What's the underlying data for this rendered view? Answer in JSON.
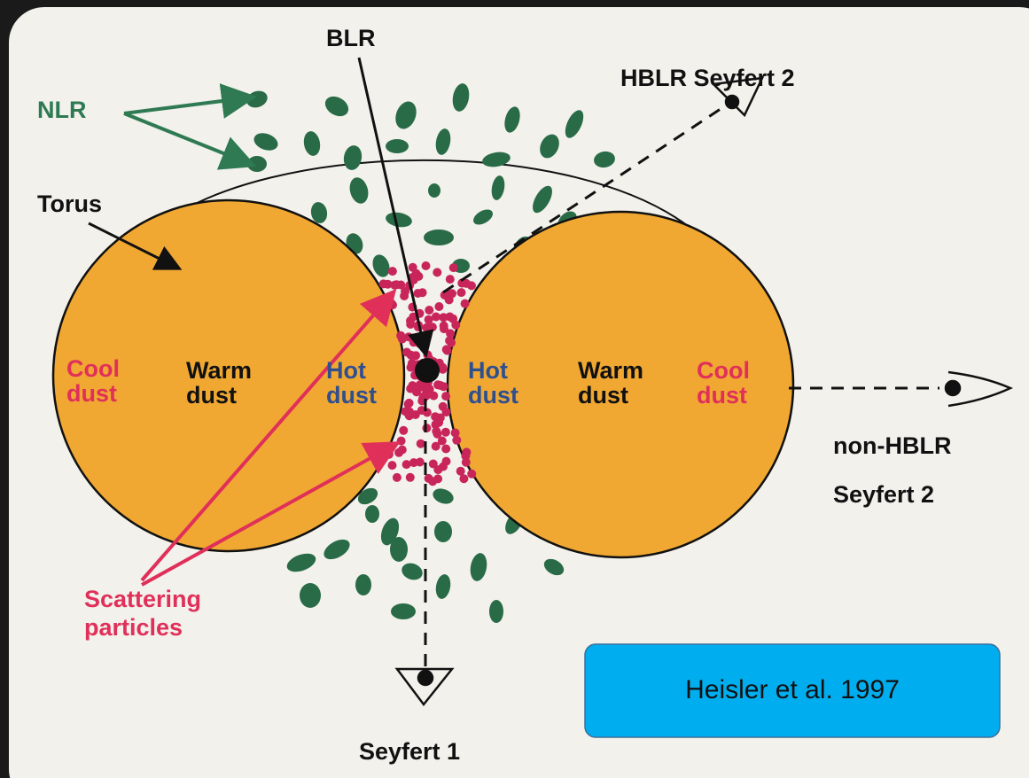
{
  "labels": {
    "blr": "BLR",
    "hblr_seyfert2": "HBLR Seyfert 2",
    "nlr": "NLR",
    "torus": "Torus",
    "cool_dust_left": [
      "Cool",
      "dust"
    ],
    "warm_dust_left": [
      "Warm",
      "dust"
    ],
    "hot_dust_left": [
      "Hot",
      "dust"
    ],
    "hot_dust_right": [
      "Hot",
      "dust"
    ],
    "warm_dust_right": [
      "Warm",
      "dust"
    ],
    "cool_dust_right": [
      "Cool",
      "dust"
    ],
    "non_hblr": "non-HBLR",
    "seyfert2": "Seyfert 2",
    "scattering": [
      "Scattering",
      "particles"
    ],
    "seyfert1": "Seyfert 1"
  },
  "citation": "Heisler et al. 1997"
}
